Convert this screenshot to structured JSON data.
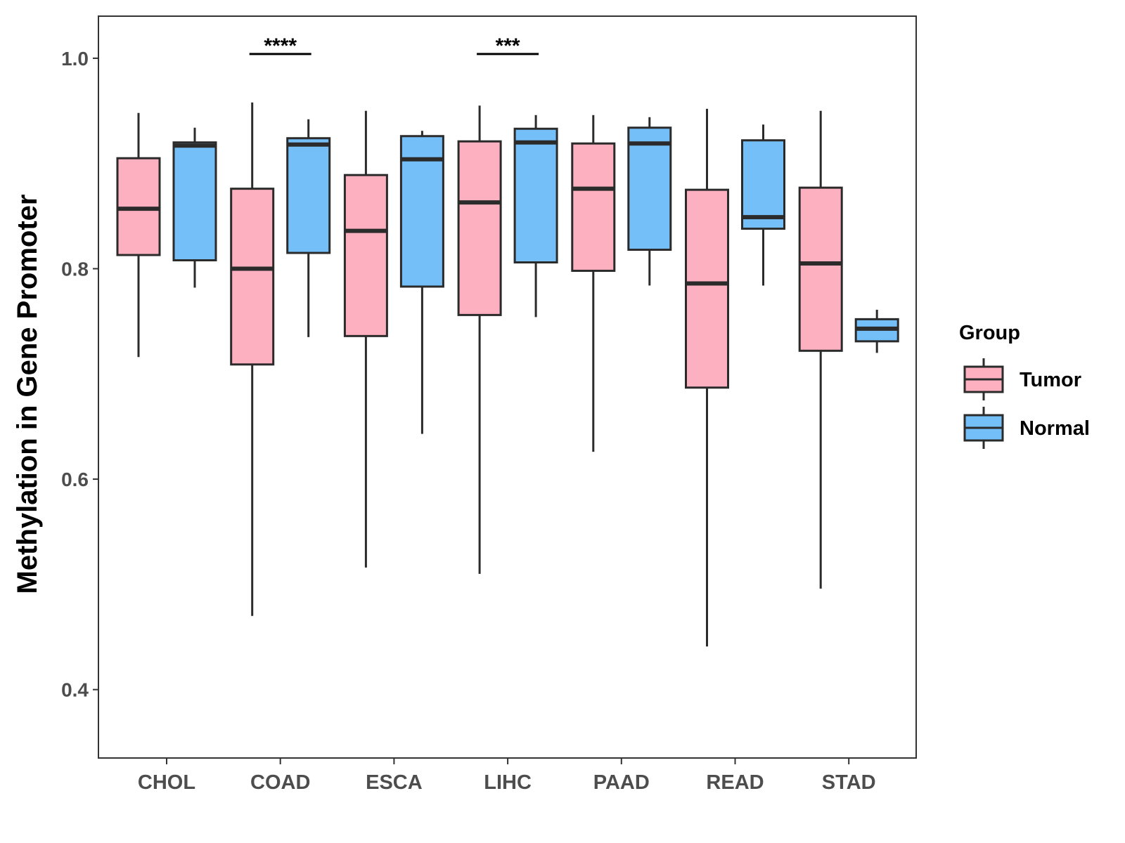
{
  "chart_data": {
    "type": "boxplot",
    "title": "",
    "xlabel": "",
    "ylabel": "Methylation in Gene Promoter",
    "ylim": [
      0.335,
      1.04
    ],
    "yticks": [
      0.4,
      0.6,
      0.8,
      1.0
    ],
    "ytick_labels": [
      "0.4",
      "0.6",
      "0.8",
      "1.0"
    ],
    "categories": [
      "CHOL",
      "COAD",
      "ESCA",
      "LIHC",
      "PAAD",
      "READ",
      "STAD"
    ],
    "grid": false,
    "legend": {
      "title": "Group",
      "position": "right",
      "entries": [
        {
          "name": "Tumor",
          "color": "#FDB0C0"
        },
        {
          "name": "Normal",
          "color": "#74BFF8"
        }
      ]
    },
    "series": [
      {
        "name": "Tumor",
        "color": "#FDB0C0",
        "boxes": [
          {
            "category": "CHOL",
            "whisker_low": 0.716,
            "q1": 0.813,
            "median": 0.857,
            "q3": 0.905,
            "whisker_high": 0.948
          },
          {
            "category": "COAD",
            "whisker_low": 0.47,
            "q1": 0.709,
            "median": 0.8,
            "q3": 0.876,
            "whisker_high": 0.958
          },
          {
            "category": "ESCA",
            "whisker_low": 0.516,
            "q1": 0.736,
            "median": 0.836,
            "q3": 0.889,
            "whisker_high": 0.95
          },
          {
            "category": "LIHC",
            "whisker_low": 0.51,
            "q1": 0.756,
            "median": 0.863,
            "q3": 0.921,
            "whisker_high": 0.955
          },
          {
            "category": "PAAD",
            "whisker_low": 0.626,
            "q1": 0.798,
            "median": 0.876,
            "q3": 0.919,
            "whisker_high": 0.946
          },
          {
            "category": "READ",
            "whisker_low": 0.441,
            "q1": 0.687,
            "median": 0.786,
            "q3": 0.875,
            "whisker_high": 0.952
          },
          {
            "category": "STAD",
            "whisker_low": 0.496,
            "q1": 0.722,
            "median": 0.805,
            "q3": 0.877,
            "whisker_high": 0.95
          }
        ]
      },
      {
        "name": "Normal",
        "color": "#74BFF8",
        "boxes": [
          {
            "category": "CHOL",
            "whisker_low": 0.782,
            "q1": 0.808,
            "median": 0.917,
            "q3": 0.92,
            "whisker_high": 0.934
          },
          {
            "category": "COAD",
            "whisker_low": 0.735,
            "q1": 0.815,
            "median": 0.918,
            "q3": 0.924,
            "whisker_high": 0.942
          },
          {
            "category": "ESCA",
            "whisker_low": 0.643,
            "q1": 0.783,
            "median": 0.904,
            "q3": 0.926,
            "whisker_high": 0.931
          },
          {
            "category": "LIHC",
            "whisker_low": 0.754,
            "q1": 0.806,
            "median": 0.92,
            "q3": 0.933,
            "whisker_high": 0.946
          },
          {
            "category": "PAAD",
            "whisker_low": 0.784,
            "q1": 0.818,
            "median": 0.919,
            "q3": 0.934,
            "whisker_high": 0.944
          },
          {
            "category": "READ",
            "whisker_low": 0.784,
            "q1": 0.838,
            "median": 0.849,
            "q3": 0.922,
            "whisker_high": 0.937
          },
          {
            "category": "STAD",
            "whisker_low": 0.72,
            "q1": 0.731,
            "median": 0.743,
            "q3": 0.752,
            "whisker_high": 0.761
          }
        ]
      }
    ],
    "annotations": [
      {
        "category": "COAD",
        "label": "****",
        "y": 1.004
      },
      {
        "category": "LIHC",
        "label": "***",
        "y": 1.004
      }
    ]
  }
}
